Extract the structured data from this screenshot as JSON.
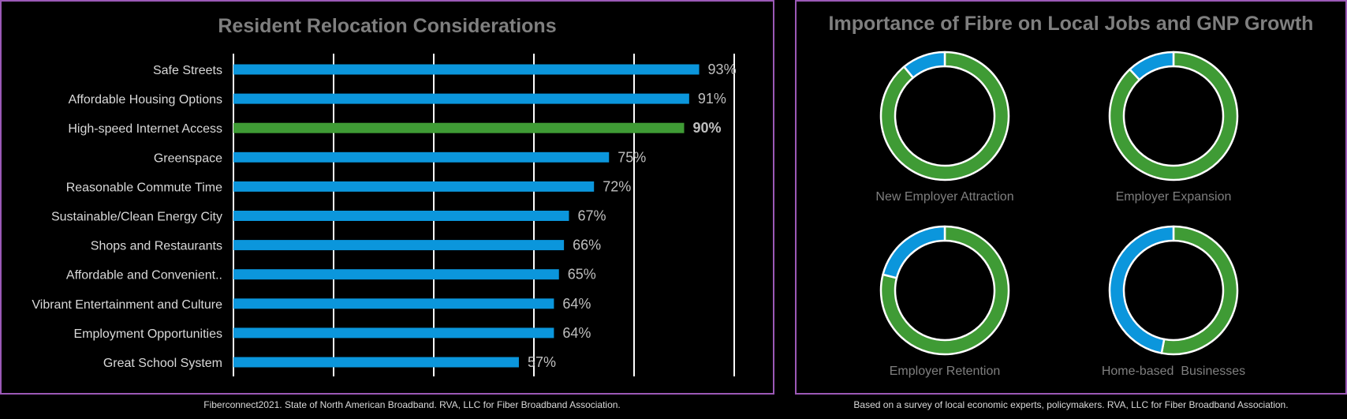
{
  "left": {
    "title": "Resident Relocation Considerations",
    "source": "Fiberconnect2021. State of North American Broadband. RVA, LLC for Fiber Broadband Association."
  },
  "right": {
    "title": "Importance of Fibre on Local Jobs and GNP Growth",
    "source": "Based on a survey of local economic experts, policymakers. RVA, LLC for Fiber Broadband Association."
  },
  "colors": {
    "bar": "#0b96dc",
    "highlight": "#3f9b35",
    "donut_blue": "#0b96dc",
    "donut_green": "#3f9b35"
  },
  "chart_data": [
    {
      "type": "bar",
      "orientation": "horizontal",
      "title": "Resident Relocation Considerations",
      "categories": [
        "Safe Streets",
        "Affordable Housing Options",
        "High-speed Internet Access",
        "Greenspace",
        "Reasonable Commute Time",
        "Sustainable/Clean Energy City",
        "Shops and Restaurants",
        "Affordable and Convenient..",
        "Vibrant Entertainment and Culture",
        "Employment Opportunities",
        "Great School System"
      ],
      "values": [
        93,
        91,
        90,
        75,
        72,
        67,
        66,
        65,
        64,
        64,
        57
      ],
      "labels": [
        "93%",
        "91%",
        "90%",
        "75%",
        "72%",
        "67%",
        "66%",
        "65%",
        "64%",
        "64%",
        "57%"
      ],
      "highlight_index": 2,
      "xlim": [
        0,
        100
      ],
      "grid": true
    },
    {
      "type": "pie",
      "variant": "donut",
      "title": "Importance of Fibre on Local Jobs and GNP Growth",
      "charts": [
        {
          "label": "New Employer Attraction",
          "green": 89,
          "blue": 11
        },
        {
          "label": "Employer Expansion",
          "green": 88,
          "blue": 12
        },
        {
          "label": "Employer Retention",
          "green": 79,
          "blue": 21
        },
        {
          "label": "Home-based  Businesses",
          "green": 53,
          "blue": 47
        }
      ]
    }
  ]
}
